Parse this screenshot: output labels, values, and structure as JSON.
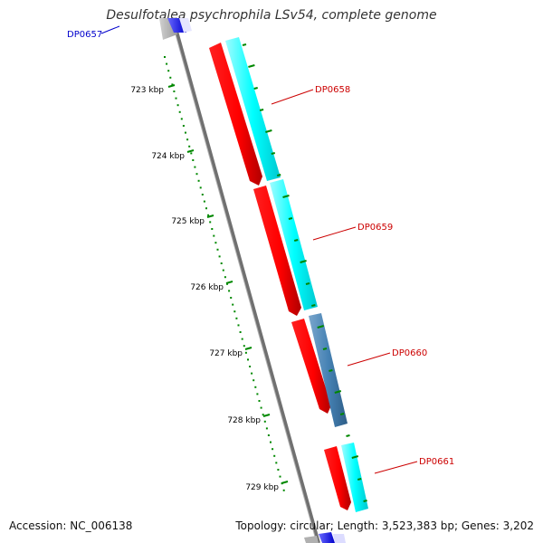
{
  "title": "Desulfotalea psychrophila LSv54, complete genome",
  "footer": {
    "accession": "Accession: NC_006138",
    "summary": "Topology: circular; Length: 3,523,383 bp; Genes: 3,202"
  },
  "genes": [
    {
      "name": "DP0657",
      "color": "#0000cc"
    },
    {
      "name": "DP0658",
      "color": "#cc0000"
    },
    {
      "name": "DP0659",
      "color": "#cc0000"
    },
    {
      "name": "DP0660",
      "color": "#cc0000"
    },
    {
      "name": "DP0661",
      "color": "#cc0000"
    }
  ],
  "ruler": {
    "labels": [
      "723 kbp",
      "724 kbp",
      "725 kbp",
      "726 kbp",
      "727 kbp",
      "728 kbp",
      "729 kbp"
    ],
    "color": "#008800"
  },
  "colors": {
    "cds": "#ff0000",
    "cds_dark": "#cc0000",
    "feature_cyan": "#00ffff",
    "feature_steel": "#4682b4",
    "backbone": "#808080",
    "blue_gene": "#0000ff"
  }
}
